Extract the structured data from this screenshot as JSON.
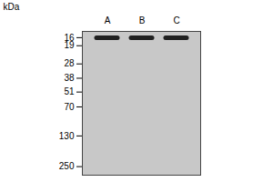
{
  "chart_data": {
    "type": "gel",
    "ylabel": "kDa",
    "categories": [
      "A",
      "B",
      "C"
    ],
    "values": [
      16,
      16,
      16
    ],
    "color": "#111111",
    "log": "y",
    "ylim": [
      300,
      14
    ],
    "yticks": [
      250,
      130,
      70,
      51,
      38,
      28,
      19,
      16
    ],
    "grid": false
  }
}
